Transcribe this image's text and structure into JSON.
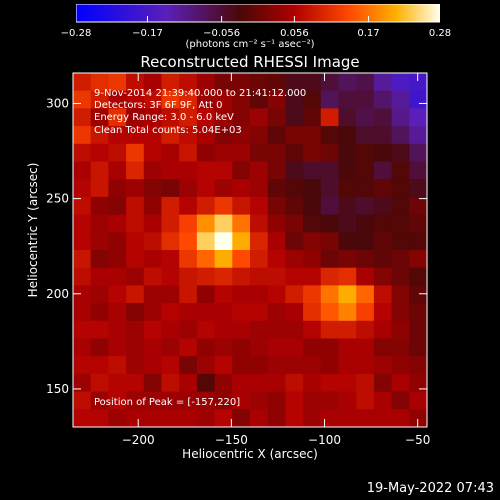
{
  "chart_data": {
    "type": "heatmap",
    "title": "Reconstructed RHESSI Image",
    "xlabel": "Heliocentric X (arcsec)",
    "ylabel": "Heliocentric Y (arcsec)",
    "xlim": [
      -235,
      -45
    ],
    "ylim": [
      130,
      316
    ],
    "xticks": [
      -200,
      -150,
      -100,
      -50
    ],
    "yticks": [
      150,
      200,
      250,
      300
    ],
    "colorbar": {
      "range": [
        -0.28,
        0.28
      ],
      "ticks": [
        -0.28,
        -0.17,
        -0.056,
        0.056,
        0.17,
        0.28
      ],
      "tick_labels": [
        "-0.28",
        "-0.17",
        "-0.056",
        "0.056",
        "0.17",
        "0.28"
      ],
      "unit_label": "(photons cm⁻² s⁻¹ asec⁻²)",
      "colormap": "blue-purple-red-yellow-white"
    },
    "annotations": [
      "9-Nov-2014 21:39:40.000 to 21:41:12.000",
      "Detectors: 3F 6F 9F, Att 0",
      "Energy Range: 3.0 - 6.0 keV",
      "Clean      Total counts: 5.04E+03"
    ],
    "peak_text": "Position of Peak = [-157,220]",
    "sources": [
      {
        "x": -157,
        "y": 220,
        "value": 0.28
      },
      {
        "x": -100,
        "y": 205,
        "value": 0.21
      },
      {
        "x": -212,
        "y": 256,
        "value": 0.12
      },
      {
        "x": -96,
        "y": 282,
        "value": 0.09
      }
    ],
    "image_grid": [
      [
        0.09,
        0.11,
        0.12,
        0.07,
        0.05,
        0.09,
        0.07,
        0.04,
        0.01,
        0.01,
        0.0,
        -0.01,
        -0.04,
        -0.04,
        -0.06,
        -0.08,
        -0.07,
        -0.12,
        -0.16,
        -0.17
      ],
      [
        0.12,
        0.09,
        0.05,
        0.06,
        0.07,
        0.12,
        0.1,
        0.04,
        0.04,
        0.02,
        -0.01,
        0.02,
        -0.04,
        -0.02,
        -0.08,
        -0.06,
        -0.06,
        -0.09,
        -0.12,
        -0.18
      ],
      [
        0.09,
        0.04,
        0.11,
        0.04,
        0.05,
        0.07,
        0.09,
        0.06,
        0.04,
        0.02,
        0.04,
        0.01,
        -0.04,
        -0.01,
        0.09,
        -0.05,
        -0.07,
        -0.06,
        -0.11,
        -0.14
      ],
      [
        0.12,
        0.08,
        0.06,
        0.06,
        0.06,
        0.09,
        0.07,
        0.05,
        0.02,
        0.03,
        0.02,
        -0.01,
        0.01,
        0.01,
        -0.02,
        -0.03,
        -0.05,
        -0.05,
        -0.08,
        -0.12
      ],
      [
        0.07,
        0.06,
        0.07,
        0.12,
        0.06,
        0.05,
        0.08,
        0.03,
        0.04,
        0.04,
        0.01,
        0.01,
        -0.01,
        0.01,
        0.0,
        -0.03,
        -0.02,
        -0.03,
        -0.04,
        -0.08
      ],
      [
        0.05,
        0.08,
        0.05,
        0.1,
        0.04,
        0.05,
        0.05,
        0.06,
        0.06,
        0.02,
        0.04,
        0.01,
        -0.04,
        -0.05,
        -0.05,
        -0.03,
        -0.02,
        -0.06,
        -0.02,
        -0.06
      ],
      [
        0.06,
        0.08,
        0.03,
        0.04,
        0.02,
        0.01,
        0.04,
        0.06,
        0.04,
        0.05,
        0.04,
        -0.01,
        -0.02,
        -0.03,
        -0.05,
        -0.02,
        -0.02,
        -0.01,
        -0.02,
        -0.04
      ],
      [
        0.07,
        0.03,
        0.02,
        0.07,
        0.03,
        0.09,
        0.06,
        0.09,
        0.12,
        0.08,
        0.06,
        0.01,
        -0.01,
        -0.03,
        -0.06,
        -0.04,
        -0.05,
        -0.04,
        -0.02,
        0.0
      ],
      [
        0.06,
        0.04,
        0.05,
        0.07,
        0.05,
        0.09,
        0.13,
        0.19,
        0.24,
        0.17,
        0.07,
        0.03,
        0.01,
        -0.02,
        -0.03,
        -0.04,
        -0.03,
        -0.02,
        -0.02,
        -0.01
      ],
      [
        0.06,
        0.04,
        0.03,
        0.06,
        0.07,
        0.11,
        0.14,
        0.24,
        0.28,
        0.21,
        0.1,
        0.05,
        0.0,
        0.02,
        0.01,
        -0.03,
        -0.03,
        -0.01,
        -0.02,
        -0.02
      ],
      [
        0.08,
        0.02,
        0.03,
        0.06,
        0.05,
        0.06,
        0.12,
        0.16,
        0.21,
        0.14,
        0.09,
        0.06,
        0.04,
        0.03,
        0.0,
        0.01,
        0.0,
        -0.01,
        0.0,
        0.02
      ],
      [
        0.07,
        0.05,
        0.05,
        0.04,
        0.07,
        0.06,
        0.08,
        0.09,
        0.1,
        0.08,
        0.07,
        0.07,
        0.06,
        0.06,
        0.1,
        0.11,
        0.05,
        0.02,
        0.0,
        -0.02
      ],
      [
        0.05,
        0.04,
        0.06,
        0.08,
        0.04,
        0.04,
        0.08,
        0.03,
        0.06,
        0.05,
        0.05,
        0.06,
        0.09,
        0.12,
        0.17,
        0.21,
        0.16,
        0.07,
        0.02,
        -0.01
      ],
      [
        0.05,
        0.03,
        0.05,
        0.02,
        0.04,
        0.06,
        0.05,
        0.05,
        0.05,
        0.06,
        0.06,
        0.04,
        0.05,
        0.11,
        0.15,
        0.18,
        0.13,
        0.06,
        0.02,
        0.0
      ],
      [
        0.06,
        0.06,
        0.05,
        0.04,
        0.06,
        0.05,
        0.04,
        0.06,
        0.05,
        0.05,
        0.04,
        0.04,
        0.04,
        0.06,
        0.09,
        0.09,
        0.07,
        0.05,
        0.03,
        0.0
      ],
      [
        0.05,
        0.03,
        0.05,
        0.04,
        0.05,
        0.04,
        0.06,
        0.03,
        0.04,
        0.03,
        0.04,
        0.05,
        0.05,
        0.03,
        0.03,
        0.05,
        0.05,
        0.02,
        0.02,
        0.0
      ],
      [
        0.06,
        0.06,
        0.07,
        0.04,
        0.05,
        0.06,
        0.01,
        0.04,
        0.06,
        0.03,
        0.03,
        0.04,
        0.04,
        0.04,
        0.03,
        0.05,
        0.05,
        0.04,
        0.03,
        0.02
      ],
      [
        0.04,
        0.07,
        0.06,
        0.06,
        0.02,
        0.07,
        0.05,
        -0.02,
        0.03,
        0.05,
        0.05,
        0.05,
        0.07,
        0.05,
        0.06,
        0.06,
        0.07,
        0.02,
        0.05,
        0.03
      ],
      [
        0.07,
        0.04,
        0.06,
        0.04,
        0.04,
        0.04,
        0.04,
        0.04,
        0.03,
        0.05,
        0.04,
        0.03,
        0.06,
        0.04,
        0.04,
        0.05,
        0.07,
        0.05,
        0.02,
        0.05
      ],
      [
        0.06,
        0.06,
        0.04,
        0.05,
        0.05,
        0.05,
        0.05,
        0.04,
        0.06,
        0.02,
        0.05,
        0.03,
        0.06,
        0.04,
        0.05,
        0.05,
        0.05,
        0.05,
        0.05,
        0.03
      ]
    ]
  },
  "footer": {
    "date_stamp": "19-May-2022 07:43"
  }
}
